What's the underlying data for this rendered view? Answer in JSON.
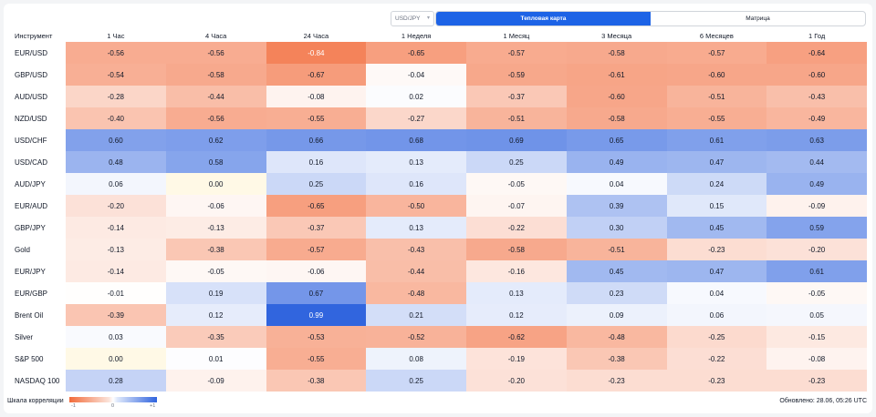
{
  "controls": {
    "pair_select": "USD/JPY",
    "tabs": [
      {
        "label": "Тепловая карта",
        "active": true
      },
      {
        "label": "Матрица",
        "active": false
      }
    ]
  },
  "table": {
    "corner": "Инструмент",
    "columns": [
      "1 Час",
      "4 Часа",
      "24 Часа",
      "1 Неделя",
      "1 Месяц",
      "3 Месяца",
      "6 Месяцев",
      "1 Год"
    ],
    "rows": [
      {
        "name": "EUR/USD",
        "values": [
          "-0.56",
          "-0.56",
          "-0.84",
          "-0.65",
          "-0.57",
          "-0.58",
          "-0.57",
          "-0.64"
        ]
      },
      {
        "name": "GBP/USD",
        "values": [
          "-0.54",
          "-0.58",
          "-0.67",
          "-0.04",
          "-0.59",
          "-0.61",
          "-0.60",
          "-0.60"
        ]
      },
      {
        "name": "AUD/USD",
        "values": [
          "-0.28",
          "-0.44",
          "-0.08",
          "0.02",
          "-0.37",
          "-0.60",
          "-0.51",
          "-0.43"
        ]
      },
      {
        "name": "NZD/USD",
        "values": [
          "-0.40",
          "-0.56",
          "-0.55",
          "-0.27",
          "-0.51",
          "-0.58",
          "-0.55",
          "-0.49"
        ]
      },
      {
        "name": "USD/CHF",
        "values": [
          "0.60",
          "0.62",
          "0.66",
          "0.68",
          "0.69",
          "0.65",
          "0.61",
          "0.63"
        ]
      },
      {
        "name": "USD/CAD",
        "values": [
          "0.48",
          "0.58",
          "0.16",
          "0.13",
          "0.25",
          "0.49",
          "0.47",
          "0.44"
        ]
      },
      {
        "name": "AUD/JPY",
        "values": [
          "0.06",
          "0.00",
          "0.25",
          "0.16",
          "-0.05",
          "0.04",
          "0.24",
          "0.49"
        ]
      },
      {
        "name": "EUR/AUD",
        "values": [
          "-0.20",
          "-0.06",
          "-0.65",
          "-0.50",
          "-0.07",
          "0.39",
          "0.15",
          "-0.09"
        ]
      },
      {
        "name": "GBP/JPY",
        "values": [
          "-0.14",
          "-0.13",
          "-0.37",
          "0.13",
          "-0.22",
          "0.30",
          "0.45",
          "0.59"
        ]
      },
      {
        "name": "Gold",
        "values": [
          "-0.13",
          "-0.38",
          "-0.57",
          "-0.43",
          "-0.58",
          "-0.51",
          "-0.23",
          "-0.20"
        ]
      },
      {
        "name": "EUR/JPY",
        "values": [
          "-0.14",
          "-0.05",
          "-0.06",
          "-0.44",
          "-0.16",
          "0.45",
          "0.47",
          "0.61"
        ]
      },
      {
        "name": "EUR/GBP",
        "values": [
          "-0.01",
          "0.19",
          "0.67",
          "-0.48",
          "0.13",
          "0.23",
          "0.04",
          "-0.05"
        ]
      },
      {
        "name": "Brent Oil",
        "values": [
          "-0.39",
          "0.12",
          "0.99",
          "0.21",
          "0.12",
          "0.09",
          "0.06",
          "0.05"
        ]
      },
      {
        "name": "Silver",
        "values": [
          "0.03",
          "-0.35",
          "-0.53",
          "-0.52",
          "-0.62",
          "-0.48",
          "-0.25",
          "-0.15"
        ]
      },
      {
        "name": "S&P 500",
        "values": [
          "0.00",
          "0.01",
          "-0.55",
          "0.08",
          "-0.19",
          "-0.38",
          "-0.22",
          "-0.08"
        ]
      },
      {
        "name": "NASDAQ 100",
        "values": [
          "0.28",
          "-0.09",
          "-0.38",
          "0.25",
          "-0.20",
          "-0.23",
          "-0.23",
          "-0.23"
        ]
      }
    ]
  },
  "legend": {
    "label": "Шкала корреляции",
    "min": "-1",
    "mid": "0",
    "max": "+1",
    "negative_color": "#f26b3a",
    "positive_color": "#2f63de"
  },
  "updated": "Обновлено: 28.06, 05:26 UTC"
}
